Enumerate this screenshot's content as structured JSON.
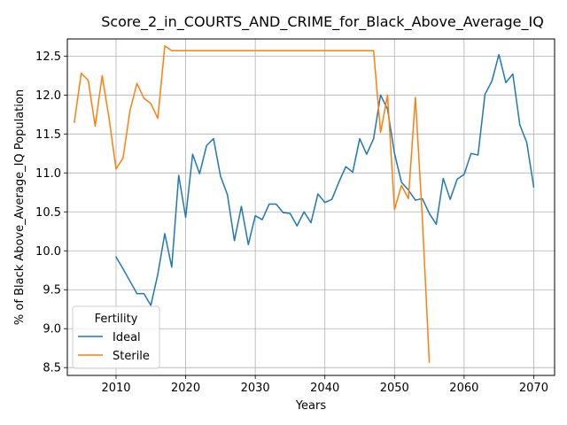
{
  "chart_data": {
    "type": "line",
    "title": "Score_2_in_COURTS_AND_CRIME_for_Black_Above_Average_IQ",
    "xlabel": "Years",
    "ylabel": "% of Black Above_Average_IQ Population",
    "xlim": [
      2003,
      2073
    ],
    "ylim": [
      8.4,
      12.72
    ],
    "xticks": [
      "2010",
      "2020",
      "2030",
      "2040",
      "2050",
      "2060",
      "2070"
    ],
    "yticks": [
      "8.5",
      "9.0",
      "9.5",
      "10.0",
      "10.5",
      "11.0",
      "11.5",
      "12.0",
      "12.5"
    ],
    "grid": true,
    "legend": {
      "title": "Fertility",
      "placement": "lower-left"
    },
    "series": [
      {
        "name": "Ideal",
        "color": "#1f77b4",
        "x": [
          2010,
          2011,
          2012,
          2013,
          2014,
          2015,
          2016,
          2017,
          2018,
          2019,
          2020,
          2021,
          2022,
          2023,
          2024,
          2025,
          2026,
          2027,
          2028,
          2029,
          2030,
          2031,
          2032,
          2033,
          2034,
          2035,
          2036,
          2037,
          2038,
          2039,
          2040,
          2041,
          2042,
          2043,
          2044,
          2045,
          2046,
          2047,
          2048,
          2049,
          2050,
          2051,
          2052,
          2053,
          2054,
          2055,
          2056,
          2057,
          2058,
          2059,
          2060,
          2061,
          2062,
          2063,
          2064,
          2065,
          2066,
          2067,
          2068,
          2069,
          2070
        ],
        "y": [
          9.92,
          9.77,
          9.61,
          9.45,
          9.45,
          9.3,
          9.7,
          10.22,
          9.79,
          10.97,
          10.43,
          11.24,
          10.99,
          11.35,
          11.44,
          10.96,
          10.72,
          10.13,
          10.57,
          10.08,
          10.45,
          10.4,
          10.6,
          10.6,
          10.49,
          10.48,
          10.32,
          10.5,
          10.36,
          10.73,
          10.62,
          10.66,
          10.88,
          11.08,
          11.01,
          11.44,
          11.24,
          11.44,
          12.0,
          11.82,
          11.25,
          10.88,
          10.78,
          10.65,
          10.67,
          10.48,
          10.34,
          10.93,
          10.66,
          10.92,
          10.98,
          11.25,
          11.23,
          12.01,
          12.18,
          12.52,
          12.16,
          12.27,
          11.62,
          11.39,
          10.82
        ]
      },
      {
        "name": "Sterile",
        "color": "#ff7f0e",
        "x": [
          2004,
          2005,
          2006,
          2007,
          2008,
          2009,
          2010,
          2011,
          2012,
          2013,
          2014,
          2015,
          2016,
          2017,
          2018,
          2019,
          2020,
          2025,
          2030,
          2035,
          2040,
          2045,
          2047,
          2048,
          2049,
          2050,
          2051,
          2052,
          2053,
          2054,
          2055
        ],
        "y": [
          11.65,
          12.28,
          12.19,
          11.6,
          12.25,
          11.7,
          11.05,
          11.19,
          11.8,
          12.15,
          11.96,
          11.89,
          11.7,
          12.63,
          12.57,
          12.57,
          12.57,
          12.57,
          12.57,
          12.57,
          12.57,
          12.57,
          12.57,
          11.52,
          12.0,
          10.53,
          10.84,
          10.67,
          11.97,
          10.42,
          8.57
        ]
      }
    ]
  }
}
